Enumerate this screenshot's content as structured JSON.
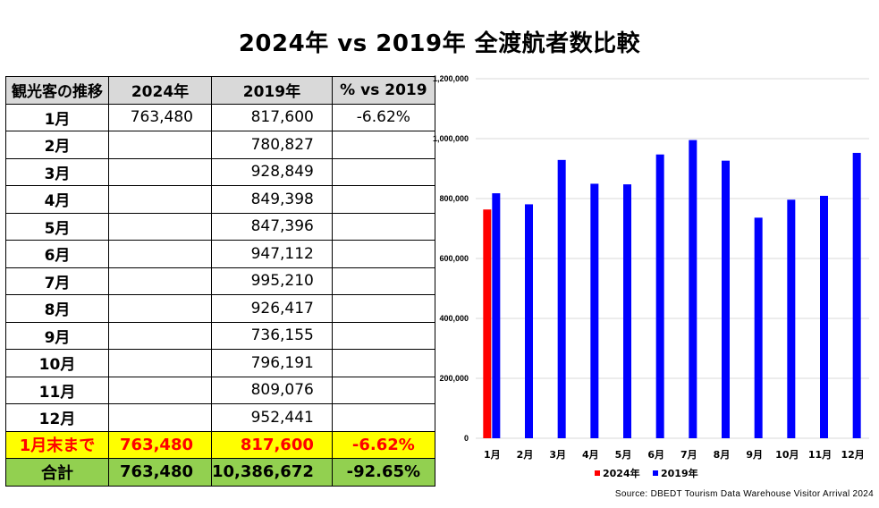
{
  "title": "2024年 vs 2019年 全渡航者数比較",
  "table": {
    "headers": [
      "観光客の推移",
      "2024年",
      "2019年",
      "% vs 2019"
    ],
    "rows": [
      {
        "month": "1月",
        "y2024": "763,480",
        "y2019": "817,600",
        "pct": "-6.62%"
      },
      {
        "month": "2月",
        "y2024": "",
        "y2019": "780,827",
        "pct": ""
      },
      {
        "month": "3月",
        "y2024": "",
        "y2019": "928,849",
        "pct": ""
      },
      {
        "month": "4月",
        "y2024": "",
        "y2019": "849,398",
        "pct": ""
      },
      {
        "month": "5月",
        "y2024": "",
        "y2019": "847,396",
        "pct": ""
      },
      {
        "month": "6月",
        "y2024": "",
        "y2019": "947,112",
        "pct": ""
      },
      {
        "month": "7月",
        "y2024": "",
        "y2019": "995,210",
        "pct": ""
      },
      {
        "month": "8月",
        "y2024": "",
        "y2019": "926,417",
        "pct": ""
      },
      {
        "month": "9月",
        "y2024": "",
        "y2019": "736,155",
        "pct": ""
      },
      {
        "month": "10月",
        "y2024": "",
        "y2019": "796,191",
        "pct": ""
      },
      {
        "month": "11月",
        "y2024": "",
        "y2019": "809,076",
        "pct": ""
      },
      {
        "month": "12月",
        "y2024": "",
        "y2019": "952,441",
        "pct": ""
      }
    ],
    "ytd": {
      "label": "1月末まで",
      "y2024": "763,480",
      "y2019": "817,600",
      "pct": "-6.62%"
    },
    "total": {
      "label": "合計",
      "y2024": "763,480",
      "y2019": "10,386,672",
      "pct": "-92.65%"
    }
  },
  "chart_data": {
    "type": "bar",
    "categories": [
      "1月",
      "2月",
      "3月",
      "4月",
      "5月",
      "6月",
      "7月",
      "8月",
      "9月",
      "10月",
      "11月",
      "12月"
    ],
    "series": [
      {
        "name": "2024年",
        "color": "#ff0000",
        "values": [
          763480,
          null,
          null,
          null,
          null,
          null,
          null,
          null,
          null,
          null,
          null,
          null
        ]
      },
      {
        "name": "2019年",
        "color": "#0000ff",
        "values": [
          817600,
          780827,
          928849,
          849398,
          847396,
          947112,
          995210,
          926417,
          736155,
          796191,
          809076,
          952441
        ]
      }
    ],
    "ylim": [
      0,
      1200000
    ],
    "yticks": [
      "0",
      "200,000",
      "400,000",
      "600,000",
      "800,000",
      "1,000,000",
      "1,200,000"
    ],
    "grid": true,
    "legend": "bottom"
  },
  "source": "Source: DBEDT Tourism Data Warehouse Visitor Arrival 2024"
}
